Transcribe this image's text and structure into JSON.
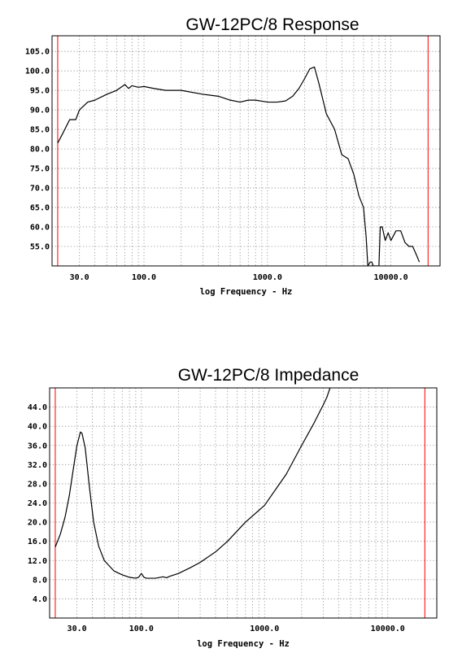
{
  "chart_data": [
    {
      "type": "line",
      "title": "GW-12PC/8 Response",
      "xlabel": "log Frequency - Hz",
      "ylabel": "",
      "x_scale": "log",
      "xlim": [
        18,
        25000
      ],
      "ylim": [
        50,
        109
      ],
      "grid": true,
      "y_ticks": [
        "105.0",
        "100.0",
        "95.0",
        "90.0",
        "85.0",
        "80.0",
        "75.0",
        "70.0",
        "65.0",
        "60.0",
        "55.0"
      ],
      "x_ticks": [
        "30.0",
        "100.0",
        "1000.0",
        "10000.0"
      ],
      "markers": [
        20,
        20000
      ],
      "colors": {
        "line": "#000000",
        "marker": "#ff0000",
        "grid": "#8a8a8a"
      },
      "series": [
        {
          "x": [
            20,
            22,
            25,
            28,
            30,
            35,
            40,
            50,
            60,
            70,
            75,
            80,
            90,
            100,
            120,
            150,
            200,
            300,
            400,
            500,
            600,
            700,
            800,
            1000,
            1200,
            1400,
            1600,
            1800,
            2000,
            2200,
            2400,
            2600,
            3000,
            3500,
            4000,
            4500,
            5000,
            5500,
            6000,
            6300,
            6500,
            6800,
            7000,
            7200,
            7500,
            8000,
            8200,
            8500,
            9000,
            9500,
            10000,
            11000,
            12000,
            13000,
            14000,
            15000,
            16000,
            17000
          ],
          "y": [
            81.5,
            84,
            87.5,
            87.5,
            90,
            92,
            92.5,
            94,
            95,
            96.5,
            95.5,
            96.2,
            95.8,
            96,
            95.5,
            95,
            95,
            94,
            93.5,
            92.5,
            92,
            92.5,
            92.5,
            92,
            92,
            92.3,
            93.5,
            95.5,
            98,
            100.5,
            101,
            97,
            89,
            85,
            78.5,
            77.5,
            73.5,
            68,
            65,
            57.5,
            50,
            51,
            51,
            50,
            50,
            50,
            60,
            60,
            56.5,
            58.5,
            56.5,
            59,
            59,
            56,
            55,
            55,
            53,
            51
          ]
        }
      ]
    },
    {
      "type": "line",
      "title": "GW-12PC/8 Impedance",
      "xlabel": "log Frequency - Hz",
      "ylabel": "",
      "x_scale": "log",
      "xlim": [
        18,
        25000
      ],
      "ylim": [
        0,
        48
      ],
      "grid": true,
      "y_ticks": [
        "44.0",
        "40.0",
        "36.0",
        "32.0",
        "28.0",
        "24.0",
        "20.0",
        "16.0",
        "12.0",
        "8.0",
        "4.0"
      ],
      "x_ticks": [
        "30.0",
        "100.0",
        "1000.0",
        "10000.0"
      ],
      "markers": [
        20,
        20000
      ],
      "colors": {
        "line": "#000000",
        "marker": "#ff0000",
        "grid": "#8a8a8a"
      },
      "series": [
        {
          "x": [
            20,
            22,
            24,
            26,
            28,
            30,
            32,
            33,
            35,
            38,
            41,
            45,
            50,
            60,
            70,
            80,
            90,
            95,
            100,
            105,
            110,
            130,
            150,
            160,
            170,
            200,
            250,
            300,
            400,
            500,
            700,
            1000,
            1500,
            2000,
            2500,
            3000,
            3200,
            3400
          ],
          "y": [
            14.8,
            17.5,
            21,
            25.5,
            31,
            36,
            38.8,
            38.5,
            35.5,
            27,
            20,
            15,
            12,
            9.8,
            9,
            8.5,
            8.3,
            8.5,
            9.3,
            8.5,
            8.3,
            8.3,
            8.6,
            8.4,
            8.7,
            9.3,
            10.5,
            11.6,
            13.8,
            16,
            20,
            23.5,
            30,
            36,
            40.5,
            44.5,
            46,
            48
          ]
        }
      ]
    }
  ]
}
